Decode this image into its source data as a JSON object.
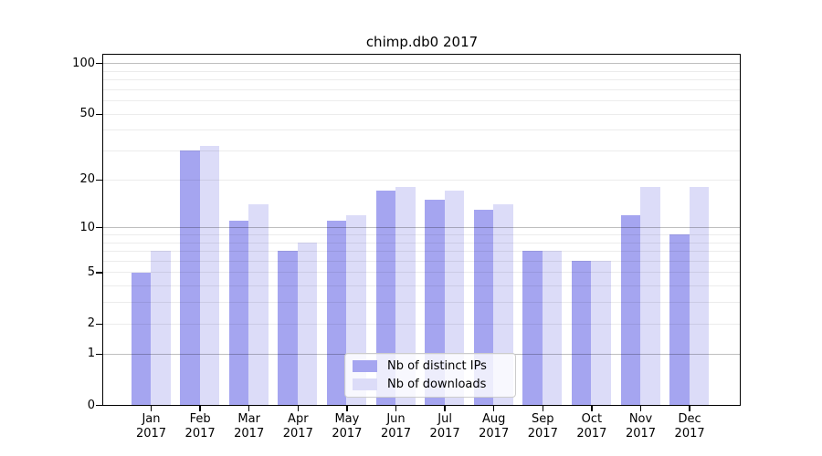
{
  "chart_data": {
    "type": "bar",
    "title": "chimp.db0 2017",
    "categories": [
      "Jan",
      "Feb",
      "Mar",
      "Apr",
      "May",
      "Jun",
      "Jul",
      "Aug",
      "Sep",
      "Oct",
      "Nov",
      "Dec"
    ],
    "year_label": "2017",
    "series": [
      {
        "name": "Nb of distinct IPs",
        "color": "#a5a5f0",
        "values": [
          5,
          30,
          11,
          7,
          11,
          17,
          15,
          13,
          7,
          6,
          12,
          9
        ]
      },
      {
        "name": "Nb of downloads",
        "color": "#dcdcf8",
        "values": [
          7,
          32,
          14,
          8,
          12,
          18,
          17,
          14,
          7,
          6,
          18,
          18
        ]
      }
    ],
    "yscale": "log1p",
    "y_ticks": [
      100,
      50,
      20,
      10,
      5,
      2,
      1,
      0
    ],
    "ylim": [
      0,
      113
    ],
    "grid": true,
    "legend_position": "lower center",
    "colors": {
      "major_grid": "#bfbfbf",
      "minor_grid": "#ebebeb",
      "spine": "#000000",
      "text": "#000000",
      "legend_border": "#cccccc"
    }
  }
}
